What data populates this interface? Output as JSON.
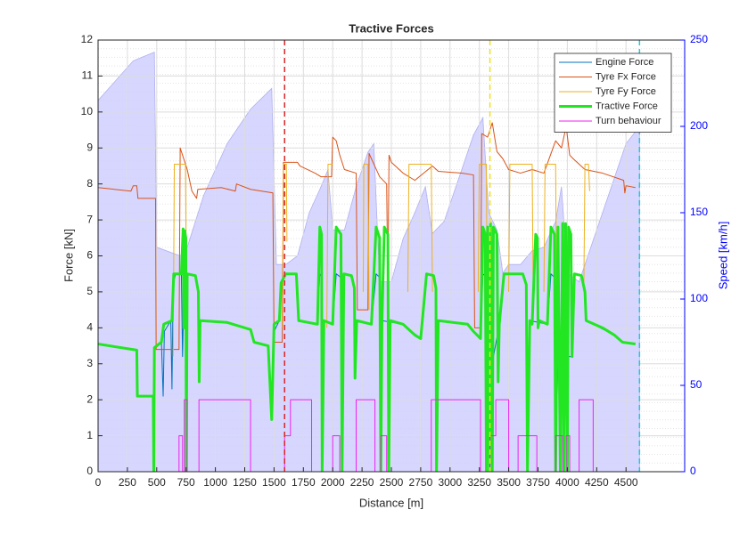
{
  "chart_data": {
    "type": "line",
    "title": "Tractive Forces",
    "xlabel": "Distance [m]",
    "ylabel": "Force [kN]",
    "y2label": "Speed [km/h]",
    "xlim": [
      0,
      5000
    ],
    "ylim": [
      0,
      12
    ],
    "y2lim": [
      0,
      250
    ],
    "xticks": [
      0,
      250,
      500,
      750,
      1000,
      1250,
      1500,
      1750,
      2000,
      2250,
      2500,
      2750,
      3000,
      3250,
      3500,
      3750,
      4000,
      4250,
      4500
    ],
    "yticks": [
      0,
      1,
      2,
      3,
      4,
      5,
      6,
      7,
      8,
      9,
      10,
      11,
      12
    ],
    "y2ticks": [
      0,
      50,
      100,
      150,
      200,
      250
    ],
    "grid": true,
    "minor_grid": true,
    "legend": "upper right",
    "vlines": [
      {
        "x": 1590,
        "color": "#d62728"
      },
      {
        "x": 3340,
        "color": "#f0e020"
      },
      {
        "x": 4615,
        "color": "#20c8e0"
      }
    ],
    "area": {
      "axis": "y2",
      "color": "#ccccff",
      "edge": "#b0b0f0",
      "x": [
        0,
        300,
        480,
        500,
        700,
        760,
        900,
        1100,
        1300,
        1480,
        1520,
        1600,
        1700,
        1800,
        1900,
        1960,
        2000,
        2100,
        2200,
        2300,
        2350,
        2400,
        2500,
        2600,
        2700,
        2790,
        2850,
        2950,
        3100,
        3200,
        3280,
        3330,
        3400,
        3450,
        3500,
        3600,
        3700,
        3800,
        3900,
        3950,
        4000,
        4100,
        4200,
        4350,
        4500,
        4615
      ],
      "values": [
        215,
        238,
        243,
        130,
        125,
        130,
        160,
        190,
        210,
        222,
        120,
        120,
        125,
        150,
        165,
        175,
        140,
        140,
        165,
        185,
        190,
        110,
        110,
        135,
        150,
        165,
        138,
        145,
        175,
        195,
        205,
        150,
        140,
        115,
        120,
        120,
        128,
        130,
        145,
        165,
        115,
        110,
        130,
        160,
        190,
        200
      ]
    },
    "series": [
      {
        "name": "Engine Force",
        "color": "#0072bd",
        "width": 1,
        "x": [
          0,
          330,
          335,
          470,
          475,
          480,
          540,
          555,
          565,
          620,
          630,
          640,
          660,
          710,
          720,
          735,
          760,
          830,
          855,
          862,
          870,
          1100,
          1300,
          1330,
          1450,
          1480,
          1500,
          1545,
          1560,
          1600,
          1690,
          1710,
          1870,
          1890,
          1905,
          1910,
          1925,
          2000,
          2030,
          2070,
          2080,
          2095,
          2160,
          2185,
          2190,
          2205,
          2330,
          2370,
          2400,
          2410,
          2420,
          2600,
          2750,
          2800,
          2860,
          2880,
          2885,
          2900,
          3150,
          3260,
          3280,
          3310,
          3320,
          3420,
          3460,
          3620,
          3650,
          3660,
          3680,
          3830,
          3860,
          3890,
          3900,
          3920,
          4040,
          4060,
          4120,
          4150,
          4160,
          4400,
          4470,
          4580
        ],
        "values": [
          3.55,
          3.38,
          2.1,
          2.1,
          0,
          3.4,
          3.6,
          2.1,
          3.9,
          4.2,
          2.3,
          5.2,
          5.5,
          5.5,
          3.2,
          5.5,
          5.5,
          5.45,
          5.0,
          2.5,
          4.2,
          4.15,
          3.95,
          3.6,
          3.5,
          1.45,
          3.9,
          4.2,
          5.25,
          5.5,
          5.5,
          4.2,
          4.1,
          5.5,
          5.4,
          0,
          4.2,
          4.1,
          5.5,
          5.4,
          0,
          5.5,
          5.45,
          5.1,
          2.6,
          4.2,
          4.1,
          5.5,
          5.4,
          0,
          4.2,
          4.1,
          3.7,
          5.5,
          5.45,
          5.1,
          0,
          4.2,
          4.1,
          3.7,
          5.5,
          5.4,
          2.3,
          4.1,
          5.5,
          5.5,
          5.2,
          0,
          4.2,
          4.1,
          5.5,
          5.4,
          0,
          3.2,
          3.2,
          5.5,
          5.45,
          5.0,
          4.2,
          3.8,
          3.6,
          3.55
        ]
      },
      {
        "name": "Tyre Fx Force",
        "color": "#d95319",
        "width": 1,
        "x": [
          0,
          280,
          300,
          330,
          340,
          490,
          495,
          690,
          700,
          720,
          760,
          800,
          840,
          850,
          1050,
          1170,
          1180,
          1300,
          1490,
          1500,
          1570,
          1580,
          1700,
          1720,
          1850,
          1900,
          1990,
          2000,
          2030,
          2060,
          2100,
          2200,
          2210,
          2300,
          2310,
          2330,
          2400,
          2460,
          2470,
          2480,
          2500,
          2600,
          2700,
          2850,
          2900,
          3100,
          3200,
          3210,
          3260,
          3270,
          3320,
          3360,
          3400,
          3450,
          3500,
          3600,
          3700,
          3800,
          3900,
          3950,
          3990,
          4020,
          4050,
          4150,
          4300,
          4480,
          4490,
          4500,
          4580
        ],
        "values": [
          7.9,
          7.8,
          7.95,
          7.95,
          7.6,
          7.6,
          3.4,
          3.4,
          9.0,
          8.8,
          8.4,
          7.8,
          7.6,
          7.85,
          7.9,
          7.8,
          8.0,
          7.85,
          7.75,
          3.6,
          3.6,
          8.6,
          8.6,
          8.5,
          8.3,
          8.2,
          8.2,
          9.3,
          9.2,
          8.8,
          8.4,
          8.3,
          4.5,
          4.5,
          8.85,
          8.7,
          8.2,
          8.0,
          5.0,
          8.8,
          8.6,
          8.3,
          8.1,
          8.5,
          8.35,
          8.3,
          8.25,
          4.0,
          4.0,
          9.4,
          9.3,
          9.7,
          8.9,
          8.7,
          8.4,
          8.3,
          8.4,
          8.3,
          9.2,
          9.0,
          9.6,
          8.8,
          8.7,
          8.4,
          8.3,
          8.1,
          7.75,
          7.95,
          7.9
        ]
      },
      {
        "name": "Tyre Fy Force",
        "color": "#edb120",
        "width": 1,
        "x": [
          640,
          650,
          745,
          750,
          null,
          1575,
          1580,
          1605,
          1610,
          null,
          1950,
          1960,
          2000,
          null,
          2260,
          2265,
          2300,
          2310,
          null,
          2640,
          2650,
          2840,
          2850,
          null,
          3240,
          3250,
          3310,
          3315,
          null,
          3500,
          3510,
          3700,
          3710,
          null,
          3800,
          3810,
          3900,
          3910,
          null,
          4140,
          4150,
          4180,
          4190
        ],
        "values": [
          3.2,
          8.55,
          8.55,
          6.3,
          null,
          4,
          8.55,
          8.55,
          6.4,
          null,
          4,
          8.55,
          8.55,
          null,
          5,
          8.55,
          8.55,
          4.5,
          null,
          5,
          8.55,
          8.55,
          5,
          null,
          5,
          8.55,
          8.55,
          5,
          null,
          5,
          8.55,
          8.55,
          4.5,
          null,
          5,
          8.55,
          8.55,
          4,
          null,
          5,
          8.55,
          8.55,
          7.8
        ]
      },
      {
        "name": "Tractive Force",
        "color": "#22e622",
        "width": 3,
        "x": [
          0,
          330,
          335,
          470,
          475,
          480,
          540,
          560,
          630,
          645,
          710,
          725,
          732,
          738,
          748,
          752,
          760,
          830,
          855,
          862,
          870,
          1100,
          1300,
          1330,
          1450,
          1480,
          1500,
          1545,
          1560,
          1600,
          1690,
          1710,
          1870,
          1890,
          1905,
          1910,
          1925,
          2000,
          2030,
          2070,
          2080,
          2095,
          2160,
          2185,
          2190,
          2205,
          2330,
          2370,
          2400,
          2410,
          2420,
          2440,
          2470,
          2478,
          2490,
          2600,
          2650,
          2700,
          2750,
          2800,
          2860,
          2880,
          2885,
          2900,
          3150,
          3200,
          3260,
          3280,
          3300,
          3310,
          3320,
          3335,
          3345,
          3360,
          3370,
          3400,
          3410,
          3420,
          3460,
          3620,
          3650,
          3660,
          3680,
          3700,
          3730,
          3745,
          3750,
          3760,
          3830,
          3860,
          3890,
          3900,
          3920,
          3940,
          3960,
          3970,
          3985,
          4000,
          4010,
          4030,
          4040,
          4060,
          4120,
          4150,
          4160,
          4300,
          4400,
          4470,
          4580
        ],
        "values": [
          3.55,
          3.38,
          2.1,
          2.1,
          0,
          3.45,
          3.6,
          4.1,
          4.2,
          5.5,
          5.5,
          6.75,
          4,
          6.7,
          6.5,
          0,
          5.5,
          5.45,
          5.0,
          2.5,
          4.2,
          4.15,
          3.95,
          3.6,
          3.5,
          1.45,
          4.1,
          4.2,
          5.25,
          5.5,
          5.5,
          4.2,
          4.1,
          6.8,
          6.6,
          0,
          4.2,
          4.1,
          6.8,
          6.6,
          0,
          5.5,
          5.45,
          5.1,
          2.6,
          4.2,
          4.1,
          6.8,
          6.5,
          0,
          4.2,
          6.8,
          6.6,
          0,
          4.2,
          4.1,
          3.95,
          3.8,
          3.7,
          5.5,
          5.45,
          5.1,
          0,
          4.2,
          4.1,
          3.9,
          3.7,
          6.8,
          6.6,
          0,
          6.8,
          0,
          6.9,
          0,
          6.8,
          6.6,
          2.5,
          4.1,
          5.5,
          5.5,
          5.2,
          0,
          4.2,
          4.1,
          6.6,
          6.5,
          4,
          4.2,
          4.1,
          6.8,
          6.6,
          0,
          6.8,
          0,
          6.9,
          0,
          6.9,
          0,
          6.8,
          6.6,
          3.2,
          5.5,
          5.45,
          5.0,
          4.2,
          4.0,
          3.8,
          3.6,
          3.55
        ]
      },
      {
        "name": "Turn behaviour",
        "color": "#ee22ee",
        "width": 1,
        "x": [
          0,
          690,
          690,
          720,
          720,
          735,
          735,
          760,
          760,
          860,
          860,
          1300,
          1300,
          1590,
          1590,
          1640,
          1640,
          1820,
          1820,
          2000,
          2000,
          2060,
          2060,
          2200,
          2200,
          2360,
          2360,
          2410,
          2410,
          2460,
          2460,
          2840,
          2840,
          3260,
          3260,
          3340,
          3340,
          3390,
          3390,
          3500,
          3500,
          3580,
          3580,
          3740,
          3740,
          3900,
          3900,
          3960,
          3960,
          3990,
          3990,
          4020,
          4020,
          4100,
          4100,
          4220,
          4220,
          4580
        ],
        "values": [
          0,
          0,
          1,
          1,
          0,
          0,
          2,
          2,
          0,
          0,
          2,
          2,
          0,
          0,
          1,
          1,
          2,
          2,
          0,
          0,
          1,
          1,
          0,
          0,
          2,
          2,
          0,
          0,
          1,
          1,
          0,
          0,
          2,
          2,
          0,
          0,
          1,
          1,
          2,
          2,
          0,
          0,
          1,
          1,
          0,
          0,
          1,
          1,
          0,
          0,
          1,
          1,
          0,
          0,
          2,
          2,
          0,
          0
        ]
      }
    ]
  }
}
